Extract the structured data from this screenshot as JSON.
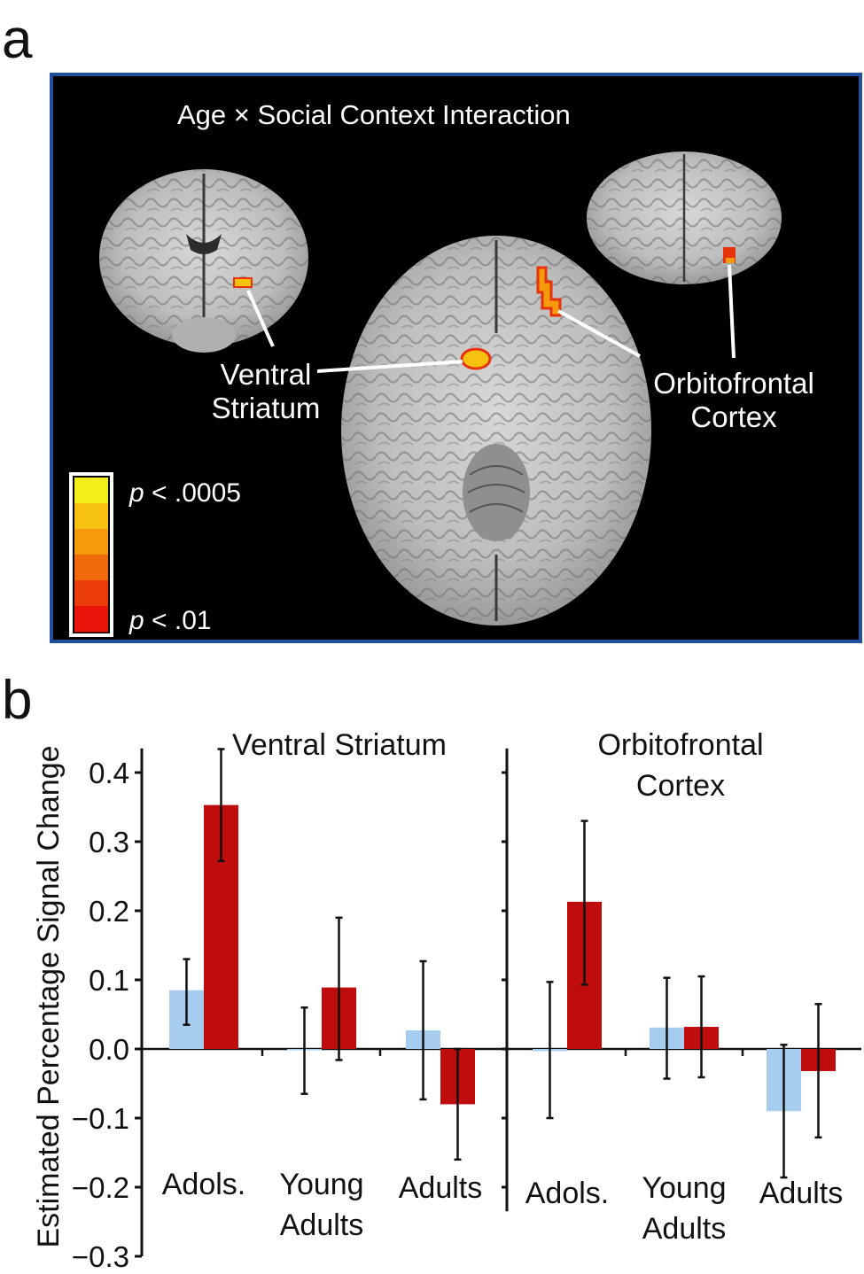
{
  "panels": {
    "a": "a",
    "b": "b"
  },
  "brain_figure": {
    "title": "Age × Social Context Interaction",
    "labels": {
      "ventral_striatum": [
        "Ventral",
        "Striatum"
      ],
      "orbitofrontal_cortex": [
        "Orbitofrontal",
        "Cortex"
      ]
    },
    "colorbar": {
      "top_label_prefix": "p",
      "top_label_value": " < .0005",
      "bottom_label_prefix": "p",
      "bottom_label_value": " < .01",
      "colors": [
        "#f2ee1a",
        "#f7c20f",
        "#f59a0b",
        "#f06a0c",
        "#ec3c0c",
        "#e81309"
      ]
    },
    "accent_colors": {
      "frame": "#1f4e9c",
      "blob_core": "#f7c20f",
      "blob_edge": "#e8320b"
    }
  },
  "chart_data": [
    {
      "type": "bar",
      "title": "Ventral Striatum",
      "ylabel": "Estimated Percentage Signal Change",
      "ylim": [
        -0.3,
        0.4
      ],
      "yticks": [
        "0.4",
        "0.3",
        "0.2",
        "0.1",
        "0.0",
        "−0.1",
        "−0.2",
        "−0.3"
      ],
      "categories": [
        [
          "Adols."
        ],
        [
          "Young",
          "Adults"
        ],
        [
          "Adults"
        ]
      ],
      "series": [
        {
          "color": "#a7cdee",
          "values": [
            0.085,
            0.0,
            0.027
          ],
          "err_low": [
            0.035,
            -0.065,
            -0.073
          ],
          "err_high": [
            0.13,
            0.06,
            0.127
          ]
        },
        {
          "color": "#bf0c0c",
          "values": [
            0.353,
            0.089,
            -0.08
          ],
          "err_low": [
            0.272,
            -0.016,
            -0.16
          ],
          "err_high": [
            0.434,
            0.19,
            0.0
          ]
        }
      ]
    },
    {
      "type": "bar",
      "title": "Orbitofrontal Cortex",
      "title_lines": [
        "Orbitofrontal",
        "Cortex"
      ],
      "ylim": [
        -0.3,
        0.4
      ],
      "categories": [
        [
          "Adols."
        ],
        [
          "Young",
          "Adults"
        ],
        [
          "Adults"
        ]
      ],
      "series": [
        {
          "color": "#a7cdee",
          "values": [
            -0.003,
            0.031,
            -0.09
          ],
          "err_low": [
            -0.1,
            -0.043,
            -0.186
          ],
          "err_high": [
            0.097,
            0.103,
            0.006
          ]
        },
        {
          "color": "#bf0c0c",
          "values": [
            0.213,
            0.032,
            -0.032
          ],
          "err_low": [
            0.093,
            -0.041,
            -0.128
          ],
          "err_high": [
            0.33,
            0.105,
            0.065
          ]
        }
      ]
    }
  ]
}
